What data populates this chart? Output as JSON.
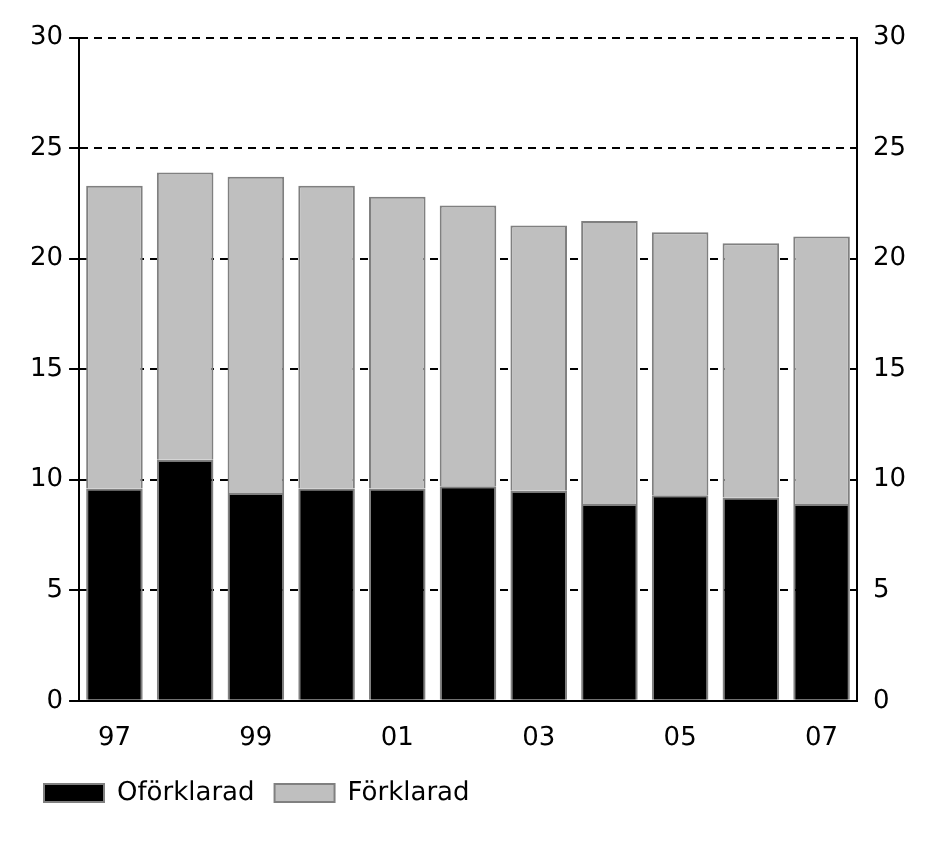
{
  "chart_data": {
    "type": "bar",
    "stacked": true,
    "categories": [
      "97",
      null,
      "99",
      null,
      "01",
      null,
      "03",
      null,
      "05",
      null,
      "07"
    ],
    "series": [
      {
        "name": "Oförklarad",
        "color": "#000000",
        "values": [
          9.6,
          10.9,
          9.4,
          9.6,
          9.6,
          9.7,
          9.5,
          8.9,
          9.3,
          9.2,
          8.9
        ]
      },
      {
        "name": "Förklarad",
        "color": "#bfbfbf",
        "values": [
          13.7,
          13.0,
          14.3,
          13.7,
          13.2,
          12.7,
          12.0,
          12.8,
          11.9,
          11.5,
          12.1
        ]
      }
    ],
    "ylim": [
      0,
      30
    ],
    "yticks": [
      0,
      5,
      10,
      15,
      20,
      25,
      30
    ],
    "y2lim": [
      0,
      30
    ],
    "y2ticks": [
      0,
      5,
      10,
      15,
      20,
      25,
      30
    ],
    "grid": "y",
    "line_style": "dashed",
    "legend": "bottom left"
  }
}
